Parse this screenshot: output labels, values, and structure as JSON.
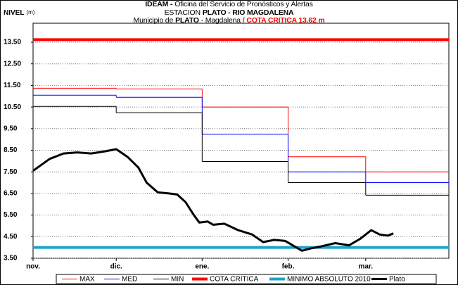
{
  "chart_data": {
    "type": "line",
    "title_lines": [
      [
        {
          "text": "IDEAM -",
          "bold": true
        },
        {
          "text": "Oficina del Servicio de Pronósticos y Alertas"
        }
      ],
      [
        {
          "text": "ESTACION"
        },
        {
          "text": "PLATO - RIO MAGDALENA",
          "bold": true
        }
      ],
      [
        {
          "text": "Municipio de"
        },
        {
          "text": "PLATO",
          "bold": true
        },
        {
          "text": "- Magdalena"
        },
        {
          "text": "/ COTA CRITICA 13.62 m",
          "bold": true,
          "color": "#ff0000"
        }
      ]
    ],
    "y_label": "NIVEL",
    "y_unit": "(m)",
    "xlim": [
      0,
      150
    ],
    "xticks": [
      {
        "value": 0,
        "label": "nov."
      },
      {
        "value": 30,
        "label": "dic."
      },
      {
        "value": 61,
        "label": "ene."
      },
      {
        "value": 92,
        "label": "feb."
      },
      {
        "value": 120,
        "label": "mar."
      }
    ],
    "ylim": [
      3.5,
      14.38
    ],
    "yticks": [
      {
        "value": 3.5,
        "label": "3.50"
      },
      {
        "value": 4.5,
        "label": "4.50"
      },
      {
        "value": 5.5,
        "label": "5.50"
      },
      {
        "value": 6.5,
        "label": "6.50"
      },
      {
        "value": 7.5,
        "label": "7.50"
      },
      {
        "value": 8.5,
        "label": "8.50"
      },
      {
        "value": 9.5,
        "label": "9.50"
      },
      {
        "value": 10.5,
        "label": "10.50"
      },
      {
        "value": 11.5,
        "label": "11.50"
      },
      {
        "value": 12.5,
        "label": "12.50"
      },
      {
        "value": 13.5,
        "label": "13.50"
      }
    ],
    "grid": true,
    "legend": "bottom",
    "series": [
      {
        "name": "MAX",
        "color": "#ff0000",
        "width": 1,
        "step": true,
        "x": [
          0,
          30,
          61,
          92,
          120
        ],
        "values": [
          11.37,
          11.34,
          10.5,
          8.2,
          7.5
        ]
      },
      {
        "name": "MED",
        "color": "#0000ff",
        "width": 1,
        "step": true,
        "x": [
          0,
          30,
          61,
          92,
          120
        ],
        "values": [
          11.05,
          10.95,
          9.24,
          7.5,
          7.0
        ]
      },
      {
        "name": "MIN",
        "color": "#000000",
        "width": 1,
        "step": true,
        "x": [
          0,
          30,
          61,
          92,
          120
        ],
        "values": [
          10.53,
          10.24,
          7.98,
          7.0,
          6.42
        ]
      },
      {
        "name": "COTA CRITICA",
        "color": "#ff0000",
        "width": 4,
        "level": 13.62
      },
      {
        "name": "MINIMO ABSOLUTO 2010",
        "color": "#1fa3c8",
        "width": 4,
        "level": 4.0
      },
      {
        "name": "Plato",
        "color": "#000000",
        "width": 3,
        "x": [
          0,
          6,
          11,
          16,
          21,
          26,
          30,
          34,
          38,
          41,
          45,
          49,
          52,
          55,
          58,
          60,
          63,
          65,
          69,
          74,
          79,
          83,
          87,
          91,
          95,
          97,
          100,
          104,
          109,
          114,
          118,
          120,
          122,
          125,
          128,
          130
        ],
        "values": [
          7.55,
          8.1,
          8.35,
          8.4,
          8.35,
          8.45,
          8.55,
          8.2,
          7.7,
          7.0,
          6.55,
          6.5,
          6.45,
          6.1,
          5.5,
          5.15,
          5.2,
          5.05,
          5.1,
          4.8,
          4.6,
          4.25,
          4.35,
          4.3,
          4.0,
          3.85,
          3.95,
          4.05,
          4.2,
          4.1,
          4.4,
          4.6,
          4.8,
          4.6,
          4.55,
          4.65
        ]
      }
    ]
  }
}
